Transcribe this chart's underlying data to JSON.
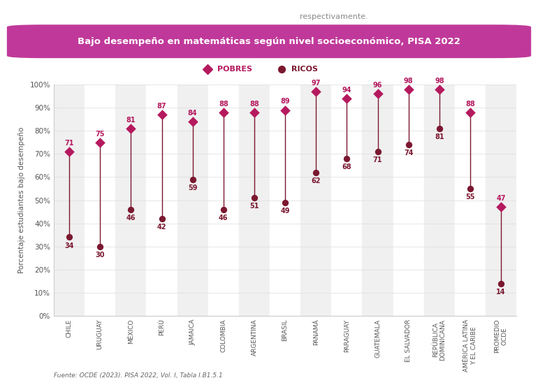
{
  "title": "Bajo desempeño en matemáticas según nivel socioeconómico, PISA 2022",
  "title_bg": "#c0399a",
  "title_color": "#ffffff",
  "ylabel": "Porcentaje estudiantes bajo desempeño",
  "categories": [
    "CHILE",
    "URUGUAY",
    "MÉXICO",
    "PERÚ",
    "JAMAICA",
    "COLOMBIA",
    "ARGENTINA",
    "BRASIL",
    "PANAMÁ",
    "PARAGUAY",
    "GUATEMALA",
    "EL SALVADOR",
    "REPÚBLICA\nDOMINICANA",
    "AMÉRICA LATINA\nY EL CARIBE",
    "PROMEDIO\nOCDE"
  ],
  "pobres": [
    71,
    75,
    81,
    87,
    84,
    88,
    88,
    89,
    97,
    94,
    96,
    98,
    98,
    88,
    47
  ],
  "ricos": [
    34,
    30,
    46,
    42,
    59,
    46,
    51,
    49,
    62,
    68,
    71,
    74,
    81,
    55,
    14
  ],
  "pobres_color": "#b5195e",
  "ricos_color": "#7b1830",
  "line_color": "#7b1830",
  "source": "Fuente: OCDE (2023). PISA 2022, Vol. I, Tabla I.B1.5.1",
  "legend_pobres": "POBRES",
  "legend_ricos": "RICOS",
  "top_text": "respectivamente.",
  "ylim": [
    0,
    100
  ],
  "yticks": [
    0,
    10,
    20,
    30,
    40,
    50,
    60,
    70,
    80,
    90,
    100
  ],
  "ytick_labels": [
    "0%",
    "10%",
    "20%",
    "30%",
    "40%",
    "50%",
    "60%",
    "70%",
    "80%",
    "90%",
    "100%"
  ]
}
